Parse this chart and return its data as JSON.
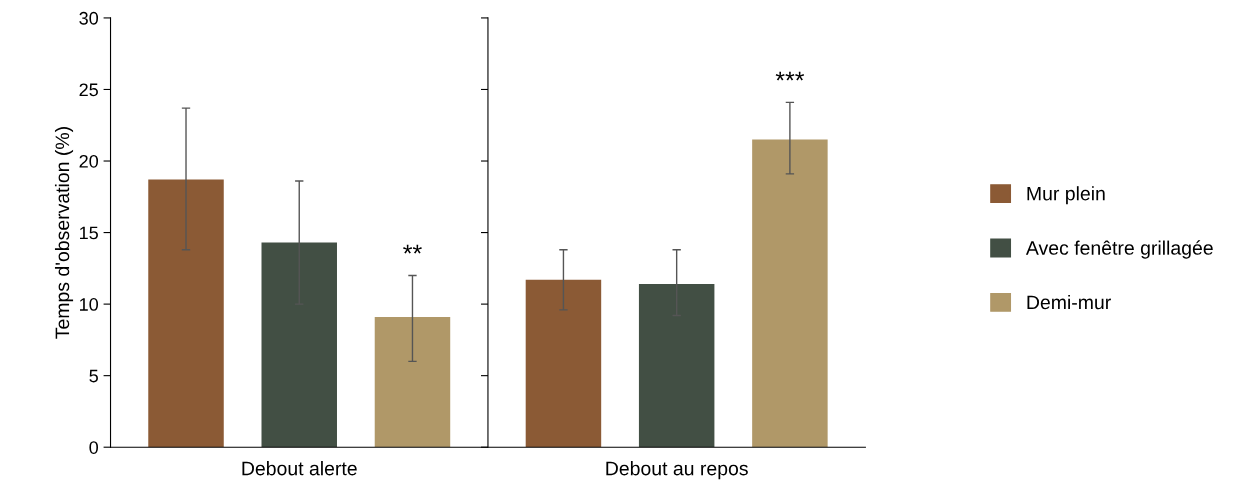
{
  "chart_data": {
    "type": "bar",
    "categories": [
      "Debout alerte",
      "Debout au repos"
    ],
    "ylabel": "Temps d'observation (%)",
    "ylim": [
      0,
      30
    ],
    "yticks": [
      0,
      5,
      10,
      15,
      20,
      25,
      30
    ],
    "grid": false,
    "legend": "right",
    "annotations": [
      "**",
      "***"
    ],
    "series": [
      {
        "name": "Mur plein",
        "color": "#8b5a35",
        "values": [
          18.7,
          11.7
        ],
        "errors": [
          [
            13.8,
            23.7
          ],
          [
            9.6,
            13.8
          ]
        ]
      },
      {
        "name": "Avec fenêtre grillagée",
        "color": "#424f44",
        "values": [
          14.3,
          11.4
        ],
        "errors": [
          [
            10.0,
            18.6
          ],
          [
            9.2,
            13.8
          ]
        ]
      },
      {
        "name": "Demi-mur",
        "color": "#b09868",
        "values": [
          9.1,
          21.5
        ],
        "errors": [
          [
            6.0,
            12.0
          ],
          [
            19.1,
            24.1
          ]
        ]
      }
    ]
  }
}
